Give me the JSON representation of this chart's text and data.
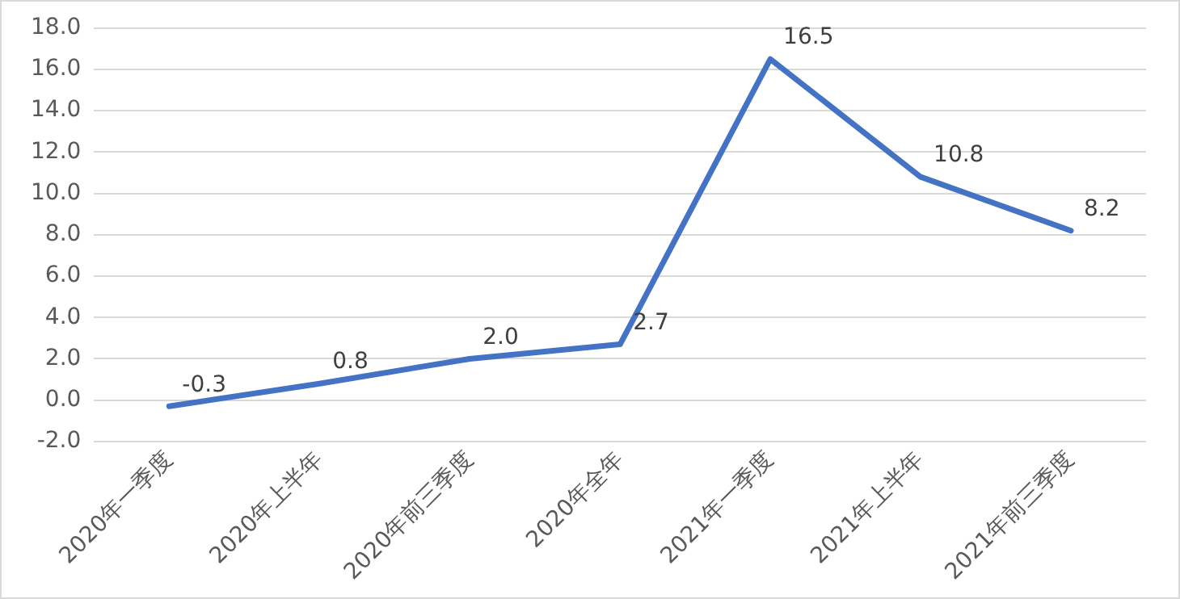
{
  "chart_data": {
    "type": "line",
    "categories": [
      "2020年一季度",
      "2020年上半年",
      "2020年前三季度",
      "2020年全年",
      "2021年一季度",
      "2021年上半年",
      "2021年前三季度"
    ],
    "series": [
      {
        "color": "#4472c4",
        "values": [
          -0.3,
          0.8,
          2.0,
          2.7,
          16.5,
          10.8,
          8.2
        ],
        "value_labels": [
          "-0.3",
          "0.8",
          "2.0",
          "2.7",
          "16.5",
          "10.8",
          "8.2"
        ]
      }
    ],
    "ylim": [
      -2,
      18
    ],
    "yticks": [
      {
        "value": -2,
        "label": "-2.0"
      },
      {
        "value": 0,
        "label": "0.0"
      },
      {
        "value": 2,
        "label": "2.0"
      },
      {
        "value": 4,
        "label": "4.0"
      },
      {
        "value": 6,
        "label": "6.0"
      },
      {
        "value": 8,
        "label": "8.0"
      },
      {
        "value": 10,
        "label": "10.0"
      },
      {
        "value": 12,
        "label": "12.0"
      },
      {
        "value": 14,
        "label": "14.0"
      },
      {
        "value": 16,
        "label": "16.0"
      },
      {
        "value": 18,
        "label": "18.0"
      }
    ],
    "grid": "y",
    "legend": false,
    "marker": "none",
    "line_style": "solid"
  }
}
